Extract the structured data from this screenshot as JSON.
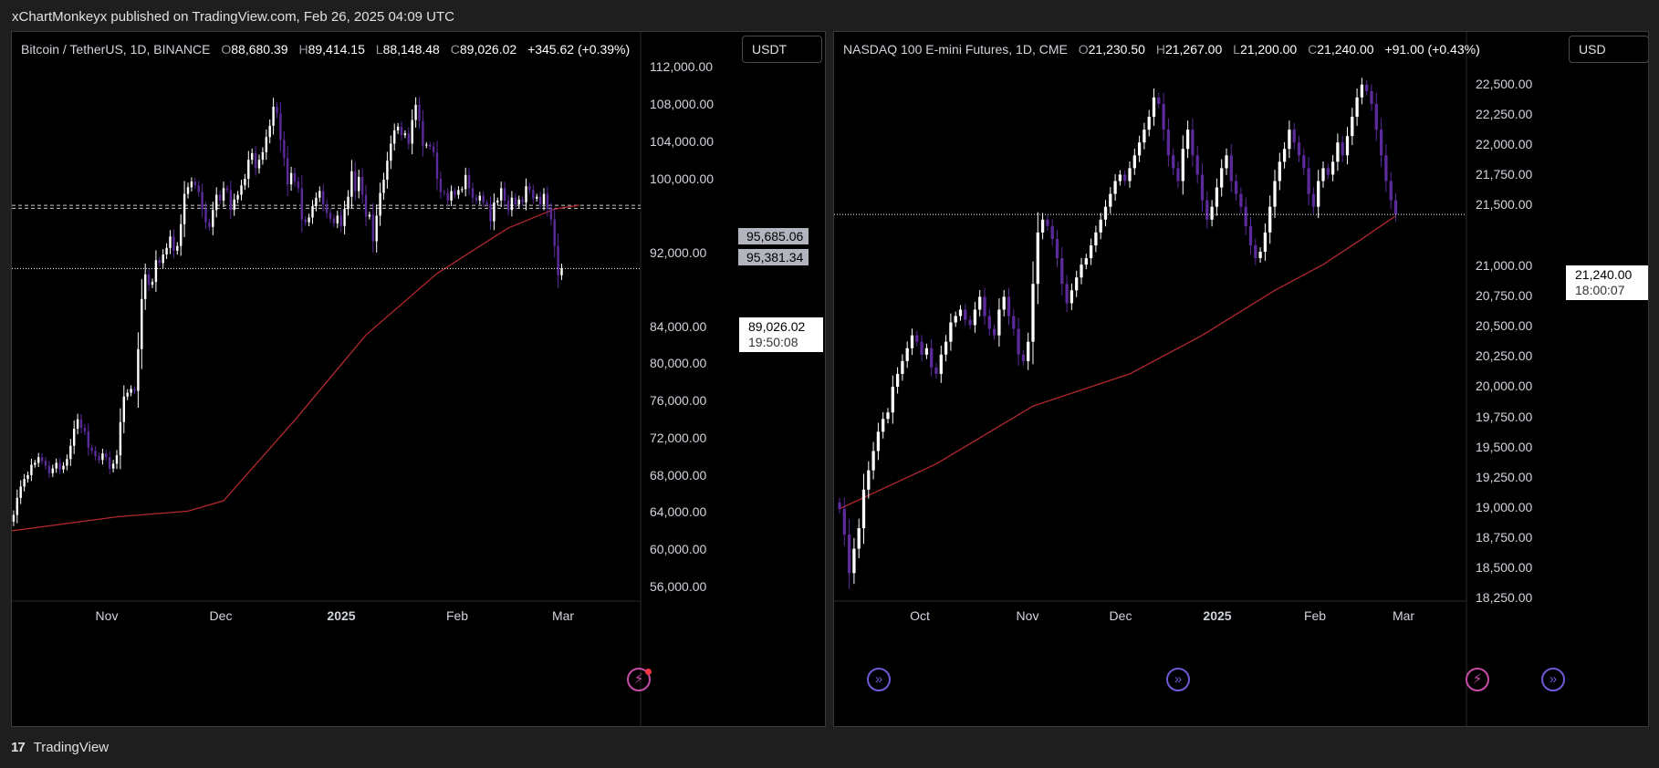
{
  "header": {
    "publisher_text": "xChartMonkeyx published on TradingView.com, Feb 26, 2025 04:09 UTC"
  },
  "footer": {
    "logo": "17",
    "brand": "TradingView"
  },
  "colors": {
    "bull": "#ffffff",
    "bear": "#5b2a9b",
    "ma": "#b2282e",
    "background": "#000000",
    "axis_text": "#d1d4dc",
    "bolt": "#c94ba8",
    "replay": "#6b5bd6"
  },
  "icons": {
    "bolt": "lightning-bolt-icon",
    "replay": "arrow-circle-icon"
  },
  "left": {
    "legend": {
      "symbol": "Bitcoin / TetherUS, 1D, BINANCE",
      "o_label": "O",
      "o": "88,680.39",
      "h_label": "H",
      "h": "89,414.15",
      "l_label": "L",
      "l": "88,148.48",
      "c_label": "C",
      "c": "89,026.02",
      "change": "+345.62 (+0.39%)"
    },
    "currency": "USDT",
    "price_tag": "89,026.02",
    "countdown": "19:50:08",
    "level_tags": [
      "95,685.06",
      "95,381.34"
    ]
  },
  "right": {
    "legend": {
      "symbol": "NASDAQ 100 E-mini Futures, 1D, CME",
      "o_label": "O",
      "o": "21,230.50",
      "h_label": "H",
      "h": "21,267.00",
      "l_label": "L",
      "l": "21,200.00",
      "c_label": "C",
      "c": "21,240.00",
      "change": "+91.00 (+0.43%)"
    },
    "currency": "USD",
    "price_tag": "21,240.00",
    "countdown": "18:00:07"
  },
  "chart_data": [
    {
      "type": "candlestick",
      "title": "Bitcoin / TetherUS, 1D, BINANCE",
      "ylim": [
        54000,
        114000
      ],
      "y_ticks": [
        "112,000.00",
        "108,000.00",
        "104,000.00",
        "100,000.00",
        "92,000.00",
        "84,000.00",
        "80,000.00",
        "76,000.00",
        "72,000.00",
        "68,000.00",
        "64,000.00",
        "60,000.00",
        "56,000.00"
      ],
      "x_labels": [
        "Nov",
        "Dec",
        "2025",
        "Feb",
        "Mar"
      ],
      "x_label_bold": [
        false,
        false,
        true,
        false,
        false
      ],
      "start": 62500,
      "close": [
        62300,
        63000,
        64800,
        66000,
        66800,
        67200,
        68300,
        68500,
        69100,
        68700,
        68200,
        67400,
        67900,
        68500,
        67800,
        68200,
        68900,
        70300,
        72100,
        73100,
        72200,
        71800,
        70100,
        69800,
        69200,
        68800,
        69500,
        69100,
        67900,
        68400,
        69300,
        72800,
        75500,
        75900,
        76300,
        76100,
        80500,
        85800,
        88400,
        87300,
        87600,
        89900,
        89600,
        90500,
        91200,
        92400,
        90900,
        91400,
        93700,
        96900,
        97600,
        98200,
        97800,
        97100,
        95300,
        93900,
        93400,
        95200,
        96800,
        96200,
        97500,
        97300,
        95200,
        96300,
        96800,
        97800,
        98500,
        100500,
        101200,
        99600,
        100500,
        101300,
        102900,
        104100,
        106100,
        105400,
        102600,
        100700,
        97900,
        99100,
        98200,
        97500,
        94200,
        93900,
        94400,
        95600,
        96500,
        97200,
        95800,
        94900,
        94300,
        93800,
        94600,
        93500,
        95300,
        96600,
        99300,
        97200,
        98700,
        96800,
        94500,
        94700,
        91900,
        94600,
        97000,
        98400,
        100400,
        102200,
        103600,
        104000,
        103100,
        103300,
        102200,
        104700,
        106300,
        104600,
        102000,
        102100,
        101900,
        101300,
        98500,
        97100,
        97000,
        96200,
        97200,
        96800,
        97300,
        97400,
        98900,
        97500,
        96500,
        96200,
        96700,
        96000,
        95800,
        94000,
        96000,
        96200,
        97500,
        96200,
        95200,
        96500,
        95800,
        96300,
        96000,
        97700,
        97300,
        96400,
        96600,
        95800,
        96900,
        95300,
        94200,
        91400,
        88300,
        89026
      ],
      "ma": [
        [
          0,
          61300
        ],
        [
          30,
          62800
        ],
        [
          50,
          63400
        ],
        [
          60,
          64500
        ],
        [
          80,
          73000
        ],
        [
          100,
          82000
        ],
        [
          120,
          88500
        ],
        [
          140,
          93300
        ],
        [
          153,
          95300
        ],
        [
          160,
          95700
        ]
      ],
      "price_line": 89026.02,
      "level_lines": [
        95685.06,
        95381.34
      ]
    },
    {
      "type": "candlestick",
      "title": "NASDAQ 100 E-mini Futures, 1D, CME",
      "ylim": [
        18240,
        22660
      ],
      "y_ticks": [
        "22,500.00",
        "22,250.00",
        "22,000.00",
        "21,750.00",
        "21,500.00",
        "21,000.00",
        "20,750.00",
        "20,500.00",
        "20,250.00",
        "20,000.00",
        "19,750.00",
        "19,500.00",
        "19,250.00",
        "19,000.00",
        "18,750.00",
        "18,500.00",
        "18,250.00"
      ],
      "x_labels": [
        "Oct",
        "Nov",
        "Dec",
        "2025",
        "Feb",
        "Mar"
      ],
      "x_label_bold": [
        false,
        false,
        false,
        true,
        false,
        false
      ],
      "start": 19000,
      "close": [
        18950,
        18750,
        18450,
        18640,
        18800,
        19100,
        19250,
        19400,
        19550,
        19650,
        19700,
        19900,
        20000,
        20100,
        20200,
        20300,
        20250,
        20150,
        20200,
        20050,
        20000,
        20150,
        20250,
        20400,
        20450,
        20500,
        20420,
        20380,
        20500,
        20600,
        20450,
        20350,
        20300,
        20500,
        20600,
        20450,
        20350,
        20150,
        20100,
        20250,
        20700,
        21100,
        21200,
        21150,
        21050,
        20900,
        20700,
        20550,
        20650,
        20750,
        20850,
        20900,
        21000,
        21100,
        21200,
        21300,
        21400,
        21500,
        21550,
        21500,
        21600,
        21700,
        21800,
        21900,
        22000,
        22150,
        22100,
        21900,
        21700,
        21600,
        21500,
        21750,
        21900,
        21700,
        21550,
        21350,
        21200,
        21300,
        21450,
        21600,
        21700,
        21500,
        21400,
        21300,
        21150,
        21000,
        20900,
        20950,
        21100,
        21300,
        21500,
        21650,
        21750,
        21900,
        21800,
        21700,
        21600,
        21400,
        21300,
        21500,
        21600,
        21550,
        21650,
        21800,
        21700,
        21850,
        22000,
        22150,
        22250,
        22200,
        22100,
        21900,
        21700,
        21500,
        21350,
        21240
      ],
      "ma": [
        [
          0,
          18950
        ],
        [
          20,
          19300
        ],
        [
          40,
          19750
        ],
        [
          60,
          20000
        ],
        [
          75,
          20300
        ],
        [
          90,
          20650
        ],
        [
          100,
          20850
        ],
        [
          108,
          21050
        ],
        [
          115,
          21230
        ]
      ],
      "price_line": 21240.0
    }
  ]
}
